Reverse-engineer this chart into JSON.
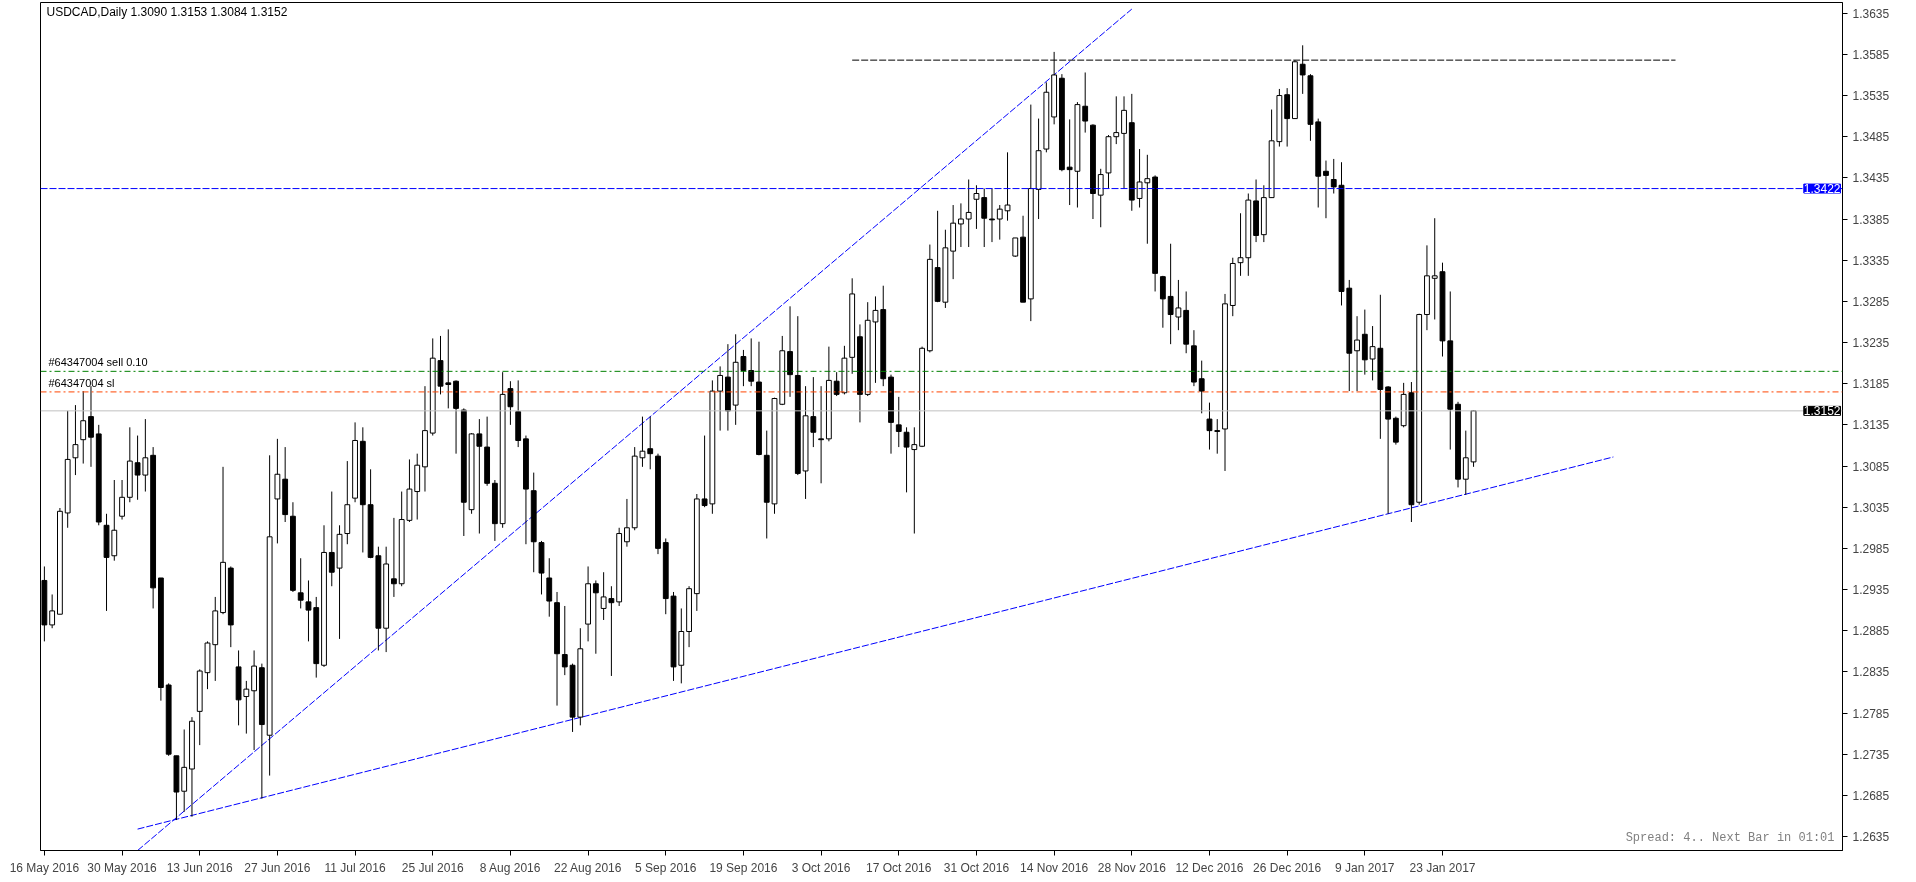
{
  "chart_data": {
    "type": "candlestick",
    "title": "USDCAD,Daily  1.3090 1.3153 1.3084 1.3152",
    "annotations": [
      "Spread: 4.. Next Bar in 01:01"
    ],
    "categories": [
      "16 May 2016",
      null,
      null,
      null,
      null,
      null,
      null,
      null,
      null,
      null,
      "30 May 2016",
      null,
      null,
      null,
      null,
      null,
      null,
      null,
      null,
      null,
      "13 Jun 2016",
      null,
      null,
      null,
      null,
      null,
      null,
      null,
      null,
      null,
      "27 Jun 2016",
      null,
      null,
      null,
      null,
      null,
      null,
      null,
      null,
      null,
      "11 Jul 2016",
      null,
      null,
      null,
      null,
      null,
      null,
      null,
      null,
      null,
      "25 Jul 2016",
      null,
      null,
      null,
      null,
      null,
      null,
      null,
      null,
      null,
      "8 Aug 2016",
      null,
      null,
      null,
      null,
      null,
      null,
      null,
      null,
      null,
      "22 Aug 2016",
      null,
      null,
      null,
      null,
      null,
      null,
      null,
      null,
      null,
      "5 Sep 2016",
      null,
      null,
      null,
      null,
      null,
      null,
      null,
      null,
      null,
      "19 Sep 2016",
      null,
      null,
      null,
      null,
      null,
      null,
      null,
      null,
      null,
      "3 Oct 2016",
      null,
      null,
      null,
      null,
      null,
      null,
      null,
      null,
      null,
      "17 Oct 2016",
      null,
      null,
      null,
      null,
      null,
      null,
      null,
      null,
      null,
      "31 Oct 2016",
      null,
      null,
      null,
      null,
      null,
      null,
      null,
      null,
      null,
      "14 Nov 2016",
      null,
      null,
      null,
      null,
      null,
      null,
      null,
      null,
      null,
      "28 Nov 2016",
      null,
      null,
      null,
      null,
      null,
      null,
      null,
      null,
      null,
      "12 Dec 2016",
      null,
      null,
      null,
      null,
      null,
      null,
      null,
      null,
      null,
      "26 Dec 2016",
      null,
      null,
      null,
      null,
      null,
      null,
      null,
      null,
      null,
      "9 Jan 2017",
      null,
      null,
      null,
      null,
      null,
      null,
      null,
      null,
      null,
      "23 Jan 2017",
      null,
      null,
      null,
      null,
      null,
      null,
      null,
      null,
      null,
      null,
      null,
      null,
      null,
      null,
      null,
      null,
      null,
      null,
      null,
      null,
      null,
      null,
      null,
      null,
      null,
      null,
      null,
      null,
      null,
      null,
      null,
      null,
      null,
      null,
      null,
      null,
      null,
      null,
      null,
      null,
      null,
      null,
      null,
      null,
      null,
      null,
      null,
      null,
      null,
      null,
      null
    ],
    "ohlc": [
      [
        1.2946,
        1.2963,
        1.2872,
        1.2892
      ],
      [
        1.2892,
        1.2929,
        1.2888,
        1.2909
      ],
      [
        1.2905,
        1.3034,
        1.2905,
        1.303
      ],
      [
        1.3028,
        1.3152,
        1.301,
        1.3093
      ],
      [
        1.3095,
        1.3159,
        1.3074,
        1.3111
      ],
      [
        1.3117,
        1.3176,
        1.3088,
        1.314
      ],
      [
        1.3145,
        1.3182,
        1.3084,
        1.312
      ],
      [
        1.3124,
        1.3135,
        1.3013,
        1.3017
      ],
      [
        1.3013,
        1.3027,
        1.2909,
        1.2974
      ],
      [
        1.2976,
        1.3068,
        1.297,
        1.3007
      ],
      [
        1.3024,
        1.3068,
        1.302,
        1.3047
      ],
      [
        1.3047,
        1.3132,
        1.3041,
        1.3091
      ],
      [
        1.3089,
        1.3122,
        1.3044,
        1.3074
      ],
      [
        1.3074,
        1.3142,
        1.3054,
        1.3095
      ],
      [
        1.3098,
        1.3108,
        1.2912,
        1.2937
      ],
      [
        1.2949,
        1.2949,
        1.28,
        1.2816
      ],
      [
        1.2819,
        1.2821,
        1.2733,
        1.2735
      ],
      [
        1.2733,
        1.2733,
        1.2655,
        1.2689
      ],
      [
        1.269,
        1.2765,
        1.2665,
        1.2719
      ],
      [
        1.2717,
        1.278,
        1.2659,
        1.2775
      ],
      [
        1.2787,
        1.2838,
        1.2746,
        1.2836
      ],
      [
        1.2834,
        1.2872,
        1.2814,
        1.287
      ],
      [
        1.2868,
        1.2926,
        1.2824,
        1.2909
      ],
      [
        1.2907,
        1.3084,
        1.2905,
        1.2968
      ],
      [
        1.2961,
        1.2963,
        1.2865,
        1.2892
      ],
      [
        1.2841,
        1.2861,
        1.277,
        1.2801
      ],
      [
        1.2805,
        1.2824,
        1.276,
        1.2814
      ],
      [
        1.2812,
        1.2861,
        1.274,
        1.2842
      ],
      [
        1.284,
        1.2845,
        1.2681,
        1.2771
      ],
      [
        1.2758,
        1.3098,
        1.2709,
        1.2999
      ],
      [
        1.3045,
        1.3118,
        1.2991,
        1.3075
      ],
      [
        1.3069,
        1.3108,
        1.3017,
        1.3026
      ],
      [
        1.3024,
        1.3041,
        1.2932,
        1.2934
      ],
      [
        1.2931,
        1.2973,
        1.2912,
        1.2922
      ],
      [
        1.292,
        1.2946,
        1.2872,
        1.291
      ],
      [
        1.2913,
        1.2926,
        1.2828,
        1.2845
      ],
      [
        1.2843,
        1.3013,
        1.2841,
        1.298
      ],
      [
        1.298,
        1.3054,
        1.2939,
        1.2956
      ],
      [
        1.2961,
        1.3013,
        1.2875,
        1.3002
      ],
      [
        1.3003,
        1.3091,
        1.299,
        1.3038
      ],
      [
        1.3046,
        1.3138,
        1.3041,
        1.3116
      ],
      [
        1.3115,
        1.3132,
        1.298,
        1.3038
      ],
      [
        1.3038,
        1.3081,
        1.2973,
        1.2974
      ],
      [
        1.2976,
        1.2987,
        1.2861,
        1.2888
      ],
      [
        1.2888,
        1.2987,
        1.2859,
        1.2966
      ],
      [
        1.2948,
        1.3022,
        1.2926,
        1.2942
      ],
      [
        1.2942,
        1.3054,
        1.2939,
        1.302
      ],
      [
        1.3019,
        1.3093,
        1.3017,
        1.3057
      ],
      [
        1.3054,
        1.31,
        1.302,
        1.3086
      ],
      [
        1.3084,
        1.3182,
        1.3054,
        1.3128
      ],
      [
        1.3125,
        1.324,
        1.3122,
        1.3216
      ],
      [
        1.3213,
        1.3243,
        1.3172,
        1.3182
      ],
      [
        1.3186,
        1.3251,
        1.3155,
        1.3184
      ],
      [
        1.3188,
        1.3189,
        1.31,
        1.3155
      ],
      [
        1.3153,
        1.3155,
        1.3,
        1.3041
      ],
      [
        1.3032,
        1.3125,
        1.3027,
        1.3124
      ],
      [
        1.3124,
        1.3142,
        1.3003,
        1.3109
      ],
      [
        1.3108,
        1.3145,
        1.3061,
        1.3064
      ],
      [
        1.3064,
        1.3068,
        1.2994,
        1.3015
      ],
      [
        1.3015,
        1.3199,
        1.301,
        1.3172
      ],
      [
        1.3179,
        1.3188,
        1.3135,
        1.3157
      ],
      [
        1.3151,
        1.3189,
        1.3108,
        1.3116
      ],
      [
        1.3118,
        1.3122,
        1.299,
        1.3057
      ],
      [
        1.3055,
        1.3077,
        1.2956,
        1.2993
      ],
      [
        1.2992,
        1.2994,
        1.2929,
        1.2955
      ],
      [
        1.2949,
        1.2973,
        1.2902,
        1.2921
      ],
      [
        1.2919,
        1.2932,
        1.2794,
        1.2857
      ],
      [
        1.2856,
        1.2915,
        1.2831,
        1.2841
      ],
      [
        1.2843,
        1.2845,
        1.2762,
        1.278
      ],
      [
        1.278,
        1.2888,
        1.277,
        1.2863
      ],
      [
        1.2893,
        1.2963,
        1.2872,
        1.2942
      ],
      [
        1.2942,
        1.2946,
        1.2857,
        1.2931
      ],
      [
        1.2912,
        1.2956,
        1.2898,
        1.2926
      ],
      [
        1.2924,
        1.2939,
        1.283,
        1.2919
      ],
      [
        1.292,
        1.301,
        1.2915,
        1.3003
      ],
      [
        1.2993,
        1.3045,
        1.2987,
        1.301
      ],
      [
        1.301,
        1.3108,
        1.3007,
        1.3097
      ],
      [
        1.3095,
        1.3145,
        1.3084,
        1.3103
      ],
      [
        1.3106,
        1.3145,
        1.3081,
        1.31
      ],
      [
        1.3097,
        1.31,
        1.2978,
        1.2985
      ],
      [
        1.2992,
        1.2997,
        1.2905,
        1.2924
      ],
      [
        1.2927,
        1.2932,
        1.2824,
        1.2841
      ],
      [
        1.2843,
        1.2912,
        1.2821,
        1.2884
      ],
      [
        1.2884,
        1.2939,
        1.2865,
        1.2936
      ],
      [
        1.293,
        1.3051,
        1.2909,
        1.3045
      ],
      [
        1.3045,
        1.3122,
        1.3035,
        1.3037
      ],
      [
        1.3039,
        1.3189,
        1.3027,
        1.3176
      ],
      [
        1.3176,
        1.3206,
        1.3128,
        1.3195
      ],
      [
        1.3193,
        1.3233,
        1.3128,
        1.3152
      ],
      [
        1.3159,
        1.3245,
        1.3135,
        1.3211
      ],
      [
        1.3218,
        1.3226,
        1.3182,
        1.3201
      ],
      [
        1.3201,
        1.324,
        1.3182,
        1.3188
      ],
      [
        1.3187,
        1.3236,
        1.3098,
        1.3099
      ],
      [
        1.3098,
        1.3128,
        1.2997,
        1.3041
      ],
      [
        1.3039,
        1.3168,
        1.3027,
        1.3167
      ],
      [
        1.316,
        1.3243,
        1.3159,
        1.3225
      ],
      [
        1.3224,
        1.3279,
        1.3169,
        1.3196
      ],
      [
        1.3195,
        1.3267,
        1.3074,
        1.3076
      ],
      [
        1.3079,
        1.3182,
        1.3045,
        1.3146
      ],
      [
        1.3145,
        1.3193,
        1.3108,
        1.3126
      ],
      [
        1.3118,
        1.3182,
        1.3064,
        1.3117
      ],
      [
        1.3118,
        1.323,
        1.3115,
        1.3189
      ],
      [
        1.3188,
        1.3199,
        1.317,
        1.3172
      ],
      [
        1.3174,
        1.3231,
        1.3172,
        1.3216
      ],
      [
        1.3217,
        1.3313,
        1.3197,
        1.3294
      ],
      [
        1.3242,
        1.3257,
        1.3138,
        1.3172
      ],
      [
        1.3172,
        1.3284,
        1.317,
        1.3262
      ],
      [
        1.326,
        1.3291,
        1.3186,
        1.3274
      ],
      [
        1.3275,
        1.3304,
        1.3182,
        1.3191
      ],
      [
        1.3193,
        1.3196,
        1.31,
        1.3138
      ],
      [
        1.3135,
        1.3169,
        1.3108,
        1.3127
      ],
      [
        1.3126,
        1.3132,
        1.3053,
        1.3108
      ],
      [
        1.3105,
        1.3132,
        1.3003,
        1.3111
      ],
      [
        1.3109,
        1.323,
        1.3108,
        1.3228
      ],
      [
        1.3225,
        1.3354,
        1.3223,
        1.3336
      ],
      [
        1.3326,
        1.3395,
        1.3284,
        1.3285
      ],
      [
        1.3284,
        1.3372,
        1.3277,
        1.335
      ],
      [
        1.3346,
        1.3402,
        1.3312,
        1.338
      ],
      [
        1.3379,
        1.3404,
        1.3351,
        1.3385
      ],
      [
        1.3385,
        1.3433,
        1.3351,
        1.3393
      ],
      [
        1.3409,
        1.3426,
        1.3373,
        1.3416
      ],
      [
        1.3411,
        1.3422,
        1.3351,
        1.3386
      ],
      [
        1.3385,
        1.3422,
        1.3357,
        1.3384
      ],
      [
        1.3385,
        1.3402,
        1.336,
        1.3397
      ],
      [
        1.3395,
        1.3466,
        1.3383,
        1.3402
      ],
      [
        1.334,
        1.3362,
        1.3339,
        1.3362
      ],
      [
        1.3363,
        1.3389,
        1.3284,
        1.3284
      ],
      [
        1.3288,
        1.3524,
        1.3261,
        1.3422
      ],
      [
        1.3421,
        1.3507,
        1.3385,
        1.3468
      ],
      [
        1.347,
        1.3551,
        1.3466,
        1.3539
      ],
      [
        1.3509,
        1.3588,
        1.35,
        1.356
      ],
      [
        1.3556,
        1.3561,
        1.3443,
        1.3445
      ],
      [
        1.3448,
        1.3506,
        1.3402,
        1.3445
      ],
      [
        1.3443,
        1.3527,
        1.3399,
        1.3524
      ],
      [
        1.3522,
        1.3563,
        1.349,
        1.3504
      ],
      [
        1.3499,
        1.35,
        1.3385,
        1.3416
      ],
      [
        1.3414,
        1.3446,
        1.3375,
        1.3439
      ],
      [
        1.3441,
        1.3487,
        1.3422,
        1.3485
      ],
      [
        1.3485,
        1.3534,
        1.3476,
        1.349
      ],
      [
        1.3489,
        1.3534,
        1.3422,
        1.3517
      ],
      [
        1.3502,
        1.3537,
        1.3395,
        1.3408
      ],
      [
        1.341,
        1.347,
        1.3399,
        1.343
      ],
      [
        1.3429,
        1.3463,
        1.3355,
        1.3434
      ],
      [
        1.3436,
        1.3438,
        1.3297,
        1.3319
      ],
      [
        1.3315,
        1.3316,
        1.3253,
        1.3288
      ],
      [
        1.3291,
        1.3355,
        1.3233,
        1.3269
      ],
      [
        1.3266,
        1.3311,
        1.325,
        1.3277
      ],
      [
        1.3274,
        1.3297,
        1.3222,
        1.3233
      ],
      [
        1.3231,
        1.325,
        1.3182,
        1.3187
      ],
      [
        1.3191,
        1.3213,
        1.3149,
        1.3176
      ],
      [
        1.3142,
        1.3162,
        1.3105,
        1.3128
      ],
      [
        1.3128,
        1.3142,
        1.31,
        1.3127
      ],
      [
        1.313,
        1.3294,
        1.3079,
        1.3282
      ],
      [
        1.328,
        1.3338,
        1.3267,
        1.3331
      ],
      [
        1.3332,
        1.3392,
        1.3316,
        1.3338
      ],
      [
        1.3338,
        1.3416,
        1.3316,
        1.3408
      ],
      [
        1.3407,
        1.3433,
        1.3357,
        1.3365
      ],
      [
        1.3366,
        1.3426,
        1.3357,
        1.3411
      ],
      [
        1.3411,
        1.3518,
        1.3411,
        1.348
      ],
      [
        1.3479,
        1.3543,
        1.3473,
        1.3535
      ],
      [
        1.3536,
        1.3544,
        1.3473,
        1.3507
      ],
      [
        1.3507,
        1.3578,
        1.3507,
        1.3576
      ],
      [
        1.3573,
        1.3596,
        1.3537,
        1.356
      ],
      [
        1.3559,
        1.3561,
        1.348,
        1.35
      ],
      [
        1.3503,
        1.3507,
        1.3399,
        1.3437
      ],
      [
        1.3443,
        1.3456,
        1.3386,
        1.3438
      ],
      [
        1.3433,
        1.3458,
        1.3416,
        1.3424
      ],
      [
        1.3426,
        1.3454,
        1.328,
        1.3297
      ],
      [
        1.3301,
        1.3311,
        1.3176,
        1.3222
      ],
      [
        1.3225,
        1.3267,
        1.3176,
        1.3238
      ],
      [
        1.3245,
        1.3275,
        1.3196,
        1.3214
      ],
      [
        1.3215,
        1.3255,
        1.3189,
        1.323
      ],
      [
        1.3228,
        1.3293,
        1.3118,
        1.3178
      ],
      [
        1.3181,
        1.3182,
        1.3027,
        1.3142
      ],
      [
        1.3143,
        1.3145,
        1.3111,
        1.3114
      ],
      [
        1.3134,
        1.3186,
        1.3132,
        1.3172
      ],
      [
        1.3174,
        1.3187,
        1.3017,
        1.3038
      ],
      [
        1.3041,
        1.327,
        1.3038,
        1.3269
      ],
      [
        1.3269,
        1.3353,
        1.325,
        1.3316
      ],
      [
        1.3313,
        1.3386,
        1.3263,
        1.3316
      ],
      [
        1.3321,
        1.3332,
        1.3218,
        1.3237
      ],
      [
        1.3237,
        1.3297,
        1.3105,
        1.3154
      ],
      [
        1.316,
        1.3163,
        1.3059,
        1.3069
      ],
      [
        1.3069,
        1.3128,
        1.305,
        1.3095
      ],
      [
        1.309,
        1.3153,
        1.3084,
        1.3152
      ],
      null,
      null,
      null,
      null,
      null,
      null,
      null,
      null,
      null,
      null,
      null,
      null,
      null,
      null,
      null,
      null,
      null,
      null,
      null,
      null,
      null,
      null,
      null,
      null,
      null,
      null,
      null,
      null,
      null,
      null,
      null,
      null,
      null,
      null,
      null,
      null,
      null,
      null,
      null,
      null,
      null,
      null,
      null,
      null,
      null,
      null,
      null
    ],
    "series": [
      {
        "type": "line",
        "color": "#0000ff",
        "line_style": "dashed",
        "values": [
          null,
          null,
          null,
          null,
          null,
          null,
          null,
          null,
          null,
          null,
          null,
          null,
          1.2644,
          null,
          null,
          null,
          null,
          null,
          null,
          null,
          null,
          null,
          null,
          null,
          null,
          null,
          null,
          null,
          null,
          null,
          null,
          null,
          null,
          null,
          null,
          null,
          null,
          null,
          null,
          null,
          null,
          null,
          null,
          null,
          null,
          null,
          null,
          null,
          null,
          null,
          null,
          null,
          null,
          null,
          null,
          null,
          null,
          null,
          null,
          null,
          null,
          null,
          null,
          null,
          null,
          null,
          null,
          null,
          null,
          null,
          null,
          null,
          null,
          null,
          null,
          null,
          null,
          null,
          null,
          null,
          null,
          null,
          null,
          null,
          null,
          null,
          null,
          null,
          null,
          null,
          null,
          null,
          null,
          null,
          null,
          null,
          null,
          null,
          null,
          null,
          null,
          null,
          null,
          null,
          null,
          null,
          null,
          null,
          null,
          null,
          null,
          null,
          null,
          null,
          null,
          null,
          null,
          null,
          null,
          null,
          null,
          null,
          null,
          null,
          null,
          null,
          null,
          null,
          null,
          null,
          null,
          null,
          null,
          null,
          null,
          null,
          null,
          null,
          null,
          null,
          null,
          null,
          null,
          null,
          null,
          null,
          null,
          null,
          null,
          null,
          null,
          null,
          null,
          null,
          null,
          null,
          null,
          null,
          null,
          null,
          null,
          null,
          null,
          null,
          null,
          null,
          null,
          null,
          null,
          null,
          null,
          null,
          null,
          null,
          null,
          null,
          null,
          null,
          null,
          null,
          null,
          null,
          null,
          null,
          null,
          null,
          null,
          null,
          null,
          null,
          null,
          null,
          null,
          null,
          null,
          null,
          null,
          null,
          null,
          null,
          null,
          null,
          1.3096,
          null,
          null,
          null,
          null,
          null,
          null,
          null,
          null,
          null,
          null,
          null,
          null,
          null,
          null,
          null,
          null,
          null,
          null,
          null,
          null,
          null,
          null,
          null,
          null,
          null,
          null,
          null,
          null,
          null
        ]
      },
      {
        "type": "line",
        "color": "#0000ff",
        "line_style": "dashed",
        "values": [
          null,
          null,
          null,
          null,
          null,
          null,
          null,
          null,
          null,
          null,
          null,
          null,
          1.2618,
          null,
          null,
          null,
          null,
          null,
          null,
          null,
          null,
          null,
          null,
          null,
          null,
          null,
          null,
          null,
          null,
          null,
          null,
          null,
          null,
          null,
          null,
          null,
          null,
          null,
          null,
          null,
          null,
          null,
          null,
          null,
          null,
          null,
          null,
          null,
          null,
          null,
          null,
          null,
          null,
          null,
          null,
          null,
          null,
          null,
          null,
          null,
          null,
          null,
          null,
          null,
          null,
          null,
          null,
          null,
          null,
          null,
          null,
          null,
          null,
          null,
          null,
          null,
          null,
          null,
          null,
          null,
          null,
          null,
          null,
          null,
          null,
          null,
          null,
          null,
          null,
          null,
          null,
          null,
          null,
          null,
          null,
          null,
          null,
          null,
          null,
          null,
          null,
          null,
          null,
          null,
          null,
          null,
          null,
          null,
          null,
          null,
          null,
          null,
          null,
          null,
          null,
          null,
          null,
          null,
          null,
          null,
          null,
          null,
          null,
          null,
          null,
          null,
          null,
          null,
          null,
          null,
          null,
          null,
          null,
          null,
          null,
          null,
          null,
          null,
          null,
          null,
          1.364,
          null,
          null,
          null,
          null,
          null,
          null,
          null,
          null,
          null,
          null,
          null,
          null,
          null,
          null,
          null,
          null,
          null,
          null,
          null,
          null,
          null,
          null,
          null,
          null,
          null,
          null,
          null,
          null,
          null,
          null,
          null,
          null,
          null,
          null,
          null,
          null,
          null,
          null,
          null,
          null,
          null,
          null,
          null,
          null,
          null,
          null,
          null,
          null,
          null,
          null,
          null,
          null,
          null,
          null,
          null,
          null,
          null,
          null,
          null,
          null,
          null,
          null,
          null,
          null,
          null,
          null,
          null,
          null,
          null,
          null,
          null,
          null,
          null,
          null,
          null,
          null,
          null,
          null,
          null,
          null,
          null,
          null,
          null,
          null,
          null,
          null,
          null,
          null,
          null,
          null,
          null
        ]
      },
      {
        "type": "line",
        "color": "#000000",
        "line_style": "dashed",
        "values": [
          null,
          null,
          null,
          null,
          null,
          null,
          null,
          null,
          null,
          null,
          null,
          null,
          null,
          null,
          null,
          null,
          null,
          null,
          null,
          null,
          null,
          null,
          null,
          null,
          null,
          null,
          null,
          null,
          null,
          null,
          null,
          null,
          null,
          null,
          null,
          null,
          null,
          null,
          null,
          null,
          null,
          null,
          null,
          null,
          null,
          null,
          null,
          null,
          null,
          null,
          null,
          null,
          null,
          null,
          null,
          null,
          null,
          null,
          null,
          null,
          null,
          null,
          null,
          null,
          null,
          null,
          null,
          null,
          null,
          null,
          null,
          null,
          null,
          null,
          null,
          null,
          null,
          null,
          null,
          null,
          null,
          null,
          null,
          null,
          null,
          null,
          null,
          null,
          null,
          null,
          null,
          null,
          null,
          null,
          null,
          null,
          null,
          null,
          null,
          null,
          null,
          null,
          null,
          null,
          1.3578,
          null,
          null,
          null,
          null,
          null,
          null,
          null,
          null,
          null,
          null,
          null,
          null,
          null,
          null,
          null,
          null,
          null,
          null,
          null,
          null,
          null,
          null,
          null,
          null,
          null,
          null,
          null,
          null,
          null,
          null,
          null,
          null,
          null,
          null,
          null,
          null,
          null,
          null,
          null,
          null,
          null,
          null,
          null,
          null,
          null,
          null,
          null,
          null,
          null,
          null,
          null,
          null,
          null,
          null,
          null,
          null,
          null,
          null,
          null,
          null,
          null,
          null,
          null,
          null,
          null,
          null,
          null,
          null,
          null,
          null,
          null,
          null,
          null,
          null,
          null,
          null,
          null,
          null,
          null,
          null,
          null,
          null,
          null,
          null,
          null,
          null,
          null,
          null,
          null,
          null,
          null,
          null,
          null,
          null,
          null,
          null,
          null,
          null,
          null,
          null,
          null,
          null,
          null,
          null,
          null,
          1.3578,
          null,
          null,
          null,
          null,
          null,
          null,
          null,
          null,
          null,
          null,
          null,
          null,
          null,
          null,
          null,
          null,
          null,
          null,
          null,
          null,
          null
        ]
      }
    ],
    "ref_lines": [
      {
        "axis": "y",
        "value": 1.3422,
        "label": "1.3422",
        "color": "#0000ff",
        "line_style": "dashed"
      },
      {
        "axis": "y",
        "value": 1.3152,
        "label": "1.3152",
        "color": "#c0c0c0",
        "line_style": "solid"
      },
      {
        "axis": "y",
        "value": 1.32,
        "label": "#64347004 sell 0.10",
        "color": "#008000",
        "line_style": "dashdot"
      },
      {
        "axis": "y",
        "value": 1.3175,
        "label": "#64347004 sl",
        "color": "#ff4500",
        "line_style": "dashdot"
      }
    ],
    "ylim": [
      1.2618,
      1.3648
    ],
    "yticks": [
      1.2635,
      1.2685,
      1.2735,
      1.2785,
      1.2835,
      1.2885,
      1.2935,
      1.2985,
      1.3035,
      1.3085,
      1.3135,
      1.3185,
      1.3235,
      1.3285,
      1.3335,
      1.3385,
      1.3435,
      1.3485,
      1.3535,
      1.3585,
      1.3635
    ]
  }
}
